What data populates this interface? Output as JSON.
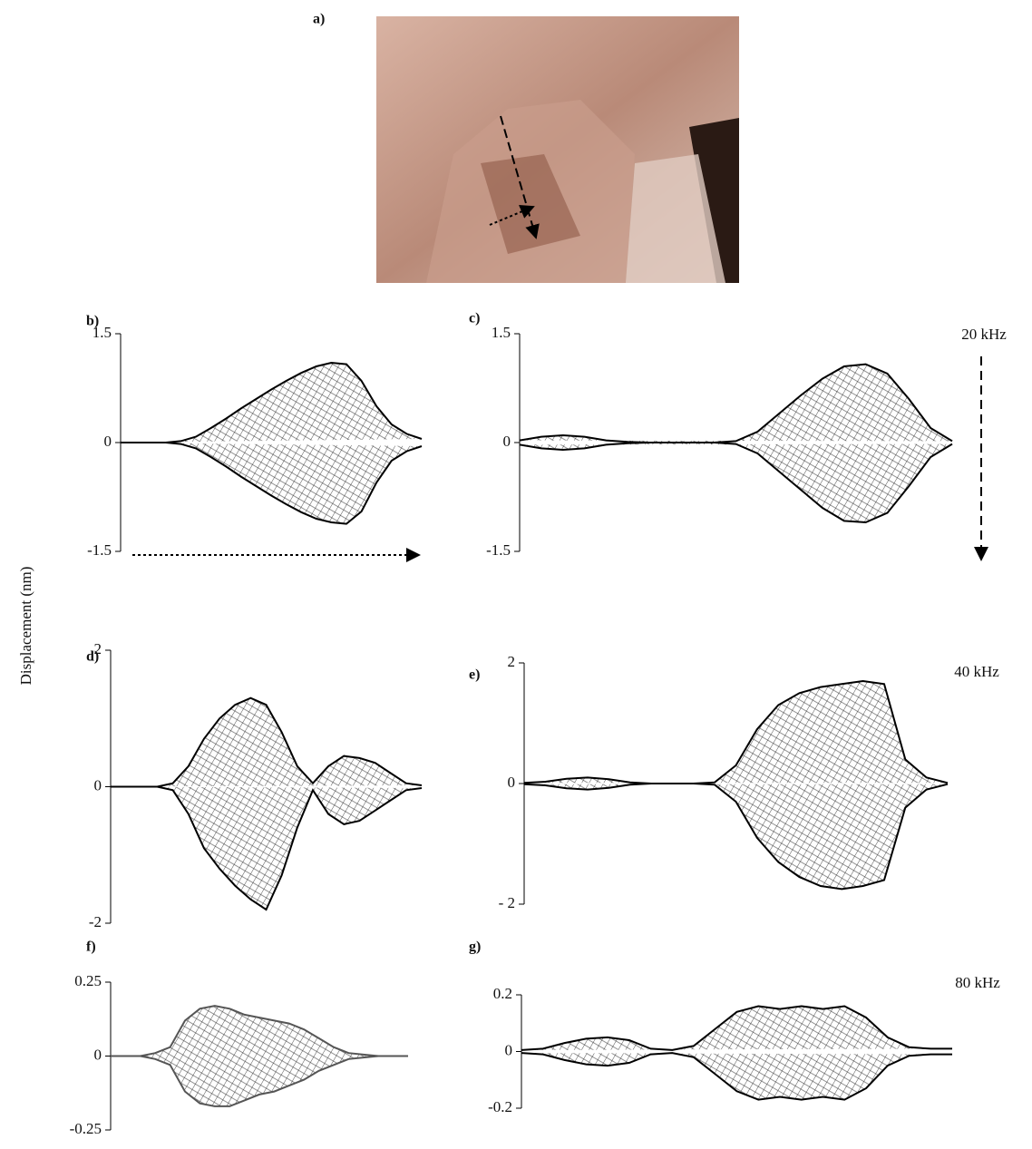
{
  "figure_label": "a)",
  "y_label": "Displacement (nm)",
  "frequency_labels": [
    "20 kHz",
    "40 kHz",
    "80 kHz"
  ],
  "chart_data": [
    {
      "type": "line",
      "title": "b)",
      "ylim": [
        -1.5,
        1.5
      ],
      "yticks": [
        -1.5,
        0,
        1.5
      ],
      "series": [
        {
          "color": "#000000",
          "values": [
            0,
            0,
            0,
            0,
            0.02,
            0.08,
            0.2,
            0.33,
            0.47,
            0.6,
            0.73,
            0.85,
            0.96,
            1.05,
            1.1,
            1.08,
            0.85,
            0.5,
            0.25,
            0.12,
            0.05
          ]
        },
        {
          "color": "#000000",
          "values": [
            0,
            0,
            0,
            0,
            -0.02,
            -0.08,
            -0.2,
            -0.33,
            -0.47,
            -0.6,
            -0.73,
            -0.85,
            -0.96,
            -1.05,
            -1.1,
            -1.12,
            -0.95,
            -0.55,
            -0.25,
            -0.12,
            -0.05
          ]
        }
      ]
    },
    {
      "type": "line",
      "title": "c)",
      "ylim": [
        -1.5,
        1.5
      ],
      "yticks": [
        -1.5,
        0,
        1.5
      ],
      "series": [
        {
          "color": "#000000",
          "values": [
            0.03,
            0.08,
            0.1,
            0.08,
            0.03,
            0.01,
            0,
            0,
            0,
            0,
            0.02,
            0.15,
            0.4,
            0.65,
            0.88,
            1.05,
            1.08,
            0.95,
            0.6,
            0.2,
            0.02
          ]
        },
        {
          "color": "#000000",
          "values": [
            -0.03,
            -0.08,
            -0.1,
            -0.08,
            -0.03,
            -0.01,
            0,
            0,
            0,
            0,
            -0.02,
            -0.15,
            -0.4,
            -0.65,
            -0.9,
            -1.08,
            -1.1,
            -0.97,
            -0.6,
            -0.2,
            -0.02
          ]
        }
      ]
    },
    {
      "type": "line",
      "title": "d)",
      "ylim": [
        -2,
        2
      ],
      "yticks": [
        -2,
        0,
        2
      ],
      "series": [
        {
          "color": "#000000",
          "values": [
            0,
            0,
            0,
            0,
            0.05,
            0.3,
            0.7,
            1.0,
            1.2,
            1.3,
            1.2,
            0.8,
            0.3,
            0.05,
            0.3,
            0.45,
            0.42,
            0.35,
            0.2,
            0.05,
            0.02
          ]
        },
        {
          "color": "#000000",
          "values": [
            0,
            0,
            0,
            0,
            -0.05,
            -0.4,
            -0.9,
            -1.2,
            -1.45,
            -1.65,
            -1.8,
            -1.3,
            -0.6,
            -0.05,
            -0.4,
            -0.55,
            -0.5,
            -0.35,
            -0.2,
            -0.05,
            -0.02
          ]
        }
      ]
    },
    {
      "type": "line",
      "title": "e)",
      "ylim": [
        -2,
        2
      ],
      "yticks": [
        {
          "value": -2,
          "label": "- 2"
        },
        0,
        2
      ],
      "series": [
        {
          "color": "#000000",
          "values": [
            0.01,
            0.03,
            0.08,
            0.1,
            0.07,
            0.02,
            0,
            0,
            0,
            0.02,
            0.3,
            0.9,
            1.3,
            1.5,
            1.6,
            1.65,
            1.7,
            1.65,
            0.4,
            0.1,
            0.01
          ]
        },
        {
          "color": "#000000",
          "values": [
            -0.01,
            -0.03,
            -0.08,
            -0.1,
            -0.07,
            -0.02,
            0,
            0,
            0,
            -0.02,
            -0.3,
            -0.9,
            -1.3,
            -1.55,
            -1.7,
            -1.75,
            -1.7,
            -1.6,
            -0.4,
            -0.1,
            -0.01
          ]
        }
      ]
    },
    {
      "type": "line",
      "title": "f)",
      "ylim": [
        -0.25,
        0.25
      ],
      "yticks": [
        -0.25,
        0,
        0.25
      ],
      "series": [
        {
          "color": "#555555",
          "values": [
            0,
            0,
            0,
            0.01,
            0.03,
            0.12,
            0.16,
            0.17,
            0.16,
            0.14,
            0.13,
            0.12,
            0.11,
            0.09,
            0.06,
            0.03,
            0.01,
            0.005,
            0,
            0,
            0
          ]
        },
        {
          "color": "#555555",
          "values": [
            0,
            0,
            0,
            -0.01,
            -0.03,
            -0.12,
            -0.16,
            -0.17,
            -0.17,
            -0.15,
            -0.13,
            -0.12,
            -0.1,
            -0.08,
            -0.05,
            -0.03,
            -0.01,
            -0.005,
            0,
            0,
            0
          ]
        }
      ]
    },
    {
      "type": "line",
      "title": "g)",
      "ylim": [
        -0.2,
        0.2
      ],
      "yticks": [
        -0.2,
        0,
        0.2
      ],
      "series": [
        {
          "color": "#000000",
          "values": [
            0.005,
            0.01,
            0.03,
            0.045,
            0.05,
            0.04,
            0.01,
            0.005,
            0.02,
            0.08,
            0.14,
            0.16,
            0.15,
            0.16,
            0.15,
            0.16,
            0.12,
            0.05,
            0.015,
            0.01,
            0.01
          ]
        },
        {
          "color": "#000000",
          "values": [
            -0.005,
            -0.01,
            -0.03,
            -0.045,
            -0.05,
            -0.04,
            -0.01,
            -0.005,
            -0.02,
            -0.08,
            -0.14,
            -0.17,
            -0.16,
            -0.17,
            -0.16,
            -0.17,
            -0.13,
            -0.05,
            -0.015,
            -0.01,
            -0.01
          ]
        }
      ]
    }
  ]
}
